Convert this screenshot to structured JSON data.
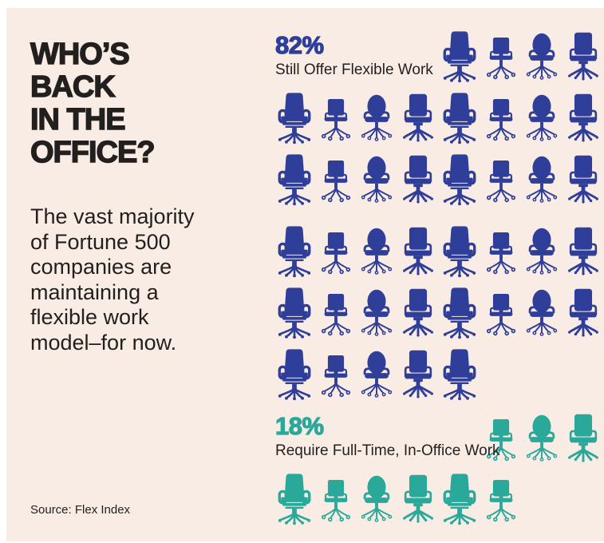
{
  "page": {
    "background": "#ffffff",
    "panel_background": "#f9ece4",
    "text_color": "#221f1f"
  },
  "left_panel": {
    "title_lines": [
      "WHO’S",
      "BACK",
      "IN THE",
      "OFFICE?"
    ],
    "subtitle_lines": [
      "The vast majority",
      "of Fortune 500",
      "companies are",
      "maintaining a",
      "flexible work",
      "model–for now."
    ],
    "source": "Source: Flex Index"
  },
  "chart_data": {
    "type": "pictograph",
    "icon": "office-chair-icon",
    "percent_per_icon": 2,
    "columns": 8,
    "series": [
      {
        "name": "Still Offer Flexible Work",
        "label": "82%",
        "value": 82,
        "icon_count": 41,
        "color": "#2f3e99",
        "rows": [
          {
            "offset": 4,
            "count": 4
          },
          {
            "offset": 0,
            "count": 8
          },
          {
            "offset": 0,
            "count": 8
          },
          {
            "offset": 0,
            "count": 8
          },
          {
            "offset": 0,
            "count": 8
          },
          {
            "offset": 0,
            "count": 5
          }
        ]
      },
      {
        "name": "Require Full-Time, In-Office Work",
        "label": "18%",
        "value": 18,
        "icon_count": 9,
        "color": "#2aa89a",
        "rows": [
          {
            "offset": 5,
            "count": 3
          },
          {
            "offset": 0,
            "count": 6
          }
        ]
      }
    ]
  }
}
